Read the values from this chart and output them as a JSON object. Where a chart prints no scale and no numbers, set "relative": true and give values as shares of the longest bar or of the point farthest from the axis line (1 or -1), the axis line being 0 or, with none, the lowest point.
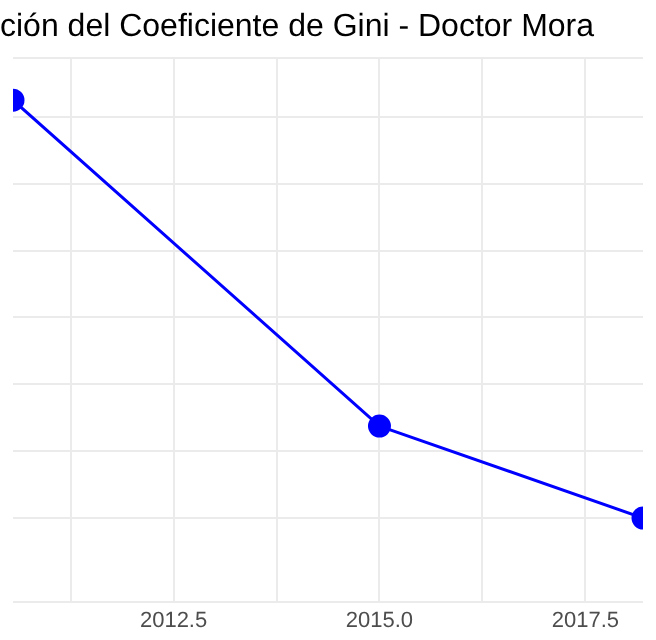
{
  "chart_data": {
    "type": "line",
    "title": "ción del Coeficiente de Gini - Doctor Mora",
    "relative": true,
    "x": [
      2010.55,
      2015,
      2018.2
    ],
    "series": [
      {
        "color": "#0000ff",
        "values": [
          1,
          0.22,
          0
        ]
      }
    ],
    "xlim": [
      2010.55,
      2018.2
    ],
    "xticks": [
      {
        "value": 2011.25,
        "label": null
      },
      {
        "value": 2012.5,
        "label": "2012.5"
      },
      {
        "value": 2013.75,
        "label": null
      },
      {
        "value": 2015,
        "label": "2015.0"
      },
      {
        "value": 2016.25,
        "label": null
      },
      {
        "value": 2017.5,
        "label": "2017.5"
      }
    ],
    "grid": true,
    "marker": "circle",
    "line_style": "solid",
    "legend": false
  }
}
